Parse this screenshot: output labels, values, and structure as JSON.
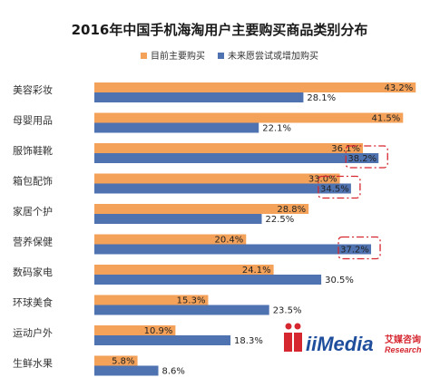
{
  "chart_data": {
    "type": "bar",
    "orientation": "horizontal",
    "title": "2016年中国手机海淘用户主要购买商品类别分布",
    "categories": [
      "美容彩妆",
      "母婴用品",
      "服饰鞋靴",
      "箱包配饰",
      "家居个护",
      "营养保健",
      "数码家电",
      "环球美食",
      "运动户外",
      "生鲜水果"
    ],
    "series": [
      {
        "name": "目前主要购买",
        "color": "#f4a259",
        "values": [
          43.2,
          41.5,
          36.1,
          33.0,
          28.8,
          20.4,
          24.1,
          15.3,
          10.9,
          5.8
        ],
        "labels": [
          "43.2%",
          "41.5%",
          "36.1%",
          "33.0%",
          "28.8%",
          "20.4%",
          "24.1%",
          "15.3%",
          "10.9%",
          "5.8%"
        ]
      },
      {
        "name": "未来愿尝试或增加购买",
        "color": "#4f72b0",
        "values": [
          28.1,
          22.1,
          38.2,
          34.5,
          22.5,
          37.2,
          30.5,
          23.5,
          18.3,
          8.6
        ],
        "labels": [
          "28.1%",
          "22.1%",
          "38.2%",
          "34.5%",
          "22.5%",
          "37.2%",
          "30.5%",
          "23.5%",
          "18.3%",
          "8.6%"
        ]
      }
    ],
    "highlighted": [
      {
        "category": "服饰鞋靴",
        "series": 1
      },
      {
        "category": "箱包配饰",
        "series": 1
      },
      {
        "category": "营养保健",
        "series": 1
      }
    ],
    "highlight_color": "#d6262f",
    "xlim": [
      0,
      45
    ],
    "grid": false,
    "legend_position": "top"
  },
  "logo": {
    "brand": "iiMedia",
    "cn_text": "艾媒咨询",
    "sub_text": "Research",
    "main_color": "#1f4e9c",
    "accent_color": "#d6262f"
  }
}
